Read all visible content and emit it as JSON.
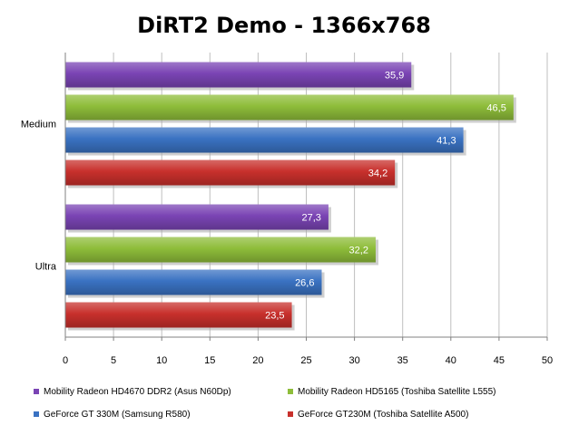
{
  "chart_data": {
    "type": "bar",
    "orientation": "horizontal",
    "title": "DiRT2 Demo - 1366x768",
    "xlabel": "",
    "ylabel": "",
    "xlim": [
      0,
      50
    ],
    "xticks": [
      "0",
      "5",
      "10",
      "15",
      "20",
      "25",
      "30",
      "35",
      "40",
      "45",
      "50"
    ],
    "grid": true,
    "legend_position": "bottom",
    "categories": [
      "Medium",
      "Ultra"
    ],
    "series": [
      {
        "name": "Mobility Radeon HD4670 DDR2 (Asus N60Dp)",
        "values": [
          35.9,
          27.3
        ],
        "labels": [
          "35,9",
          "27,3"
        ],
        "color": "#7a44b4"
      },
      {
        "name": "Mobility Radeon HD5165 (Toshiba Satellite L555)",
        "values": [
          46.5,
          32.2
        ],
        "labels": [
          "46,5",
          "32,2"
        ],
        "color": "#8ebd3a"
      },
      {
        "name": "GeForce GT 330M (Samsung R580)",
        "values": [
          41.3,
          26.6
        ],
        "labels": [
          "41,3",
          "26,6"
        ],
        "color": "#3a72c2"
      },
      {
        "name": "GeForce GT230M (Toshiba Satellite A500)",
        "values": [
          34.2,
          23.5
        ],
        "labels": [
          "34,2",
          "23,5"
        ],
        "color": "#c8302c"
      }
    ]
  }
}
